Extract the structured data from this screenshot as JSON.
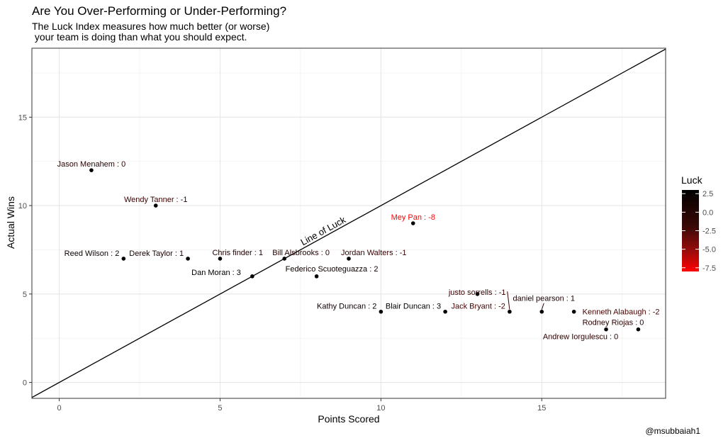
{
  "chart_data": {
    "type": "scatter",
    "title": "Are You Over-Performing or Under-Performing?",
    "subtitle": "The Luck Index measures how much better (or worse)\n your team is doing than what you should expect.",
    "xlabel": "Points Scored",
    "ylabel": "Actual Wins",
    "caption": "@msubbaiah1",
    "xlim": [
      -0.85,
      18.85
    ],
    "ylim": [
      -0.9,
      18.9
    ],
    "xticks": [
      0,
      5,
      10,
      15
    ],
    "yticks": [
      0,
      5,
      10,
      15
    ],
    "grid": true,
    "reference_line": {
      "label": "Line of Luck",
      "slope": 1,
      "intercept": 0
    },
    "legend": {
      "title": "Luck",
      "placement": "right",
      "ticks": [
        2.5,
        0.0,
        -2.5,
        -5.0,
        -7.5
      ],
      "tick_labels": [
        "2.5",
        "0.0",
        "-2.5",
        "-5.0",
        "-7.5"
      ],
      "range": [
        -8,
        3
      ],
      "colors": {
        "high": "#000000",
        "low": "#ff0000"
      }
    },
    "points": [
      {
        "label": "Jason Menahem : 0",
        "x": 1,
        "y": 12,
        "luck": 0,
        "anchor": "above"
      },
      {
        "label": "Wendy Tanner : -1",
        "x": 3,
        "y": 10,
        "luck": -1,
        "anchor": "above"
      },
      {
        "label": "Reed Wilson : 2",
        "x": 2,
        "y": 7,
        "luck": 2,
        "anchor": "left"
      },
      {
        "label": "Derek  Taylor : 1",
        "x": 4,
        "y": 7,
        "luck": 1,
        "anchor": "left"
      },
      {
        "label": "Chris finder : 1",
        "x": 5,
        "y": 7,
        "luck": 1,
        "anchor": "above-right"
      },
      {
        "label": "Dan Moran : 3",
        "x": 6,
        "y": 6,
        "luck": 3,
        "anchor": "above-left"
      },
      {
        "label": "Bill Alsbrooks : 0",
        "x": 7,
        "y": 7,
        "luck": 0,
        "anchor": "above-right"
      },
      {
        "label": "Federico Scuoteguazza : 2",
        "x": 8,
        "y": 6,
        "luck": 2,
        "anchor": "above-right"
      },
      {
        "label": "Jordan Walters : -1",
        "x": 9,
        "y": 7,
        "luck": -1,
        "anchor": "above-right"
      },
      {
        "label": "Kathy Duncan : 2",
        "x": 10,
        "y": 4,
        "luck": 2,
        "anchor": "left"
      },
      {
        "label": "Mey Pan : -8",
        "x": 11,
        "y": 9,
        "luck": -8,
        "anchor": "above"
      },
      {
        "label": "Blair Duncan : 3",
        "x": 12,
        "y": 4,
        "luck": 3,
        "anchor": "left"
      },
      {
        "label": "justo sorrells : -1",
        "x": 13,
        "y": 5,
        "luck": -1,
        "anchor": "left"
      },
      {
        "label": "Jack Bryant : -2",
        "x": 14,
        "y": 4,
        "luck": -2,
        "anchor": "left"
      },
      {
        "label": "daniel pearson : 1",
        "x": 15,
        "y": 4,
        "luck": 1,
        "anchor": "above"
      },
      {
        "label": "Kenneth Alabaugh : -2",
        "x": 16,
        "y": 4,
        "luck": -2,
        "anchor": "right"
      },
      {
        "label": "Andrew Iorgulescu : 0",
        "x": 17,
        "y": 3,
        "luck": 0,
        "anchor": "below-left"
      },
      {
        "label": "Rodney Riojas : 0",
        "x": 18,
        "y": 3,
        "luck": 0,
        "anchor": "above-left"
      }
    ]
  }
}
